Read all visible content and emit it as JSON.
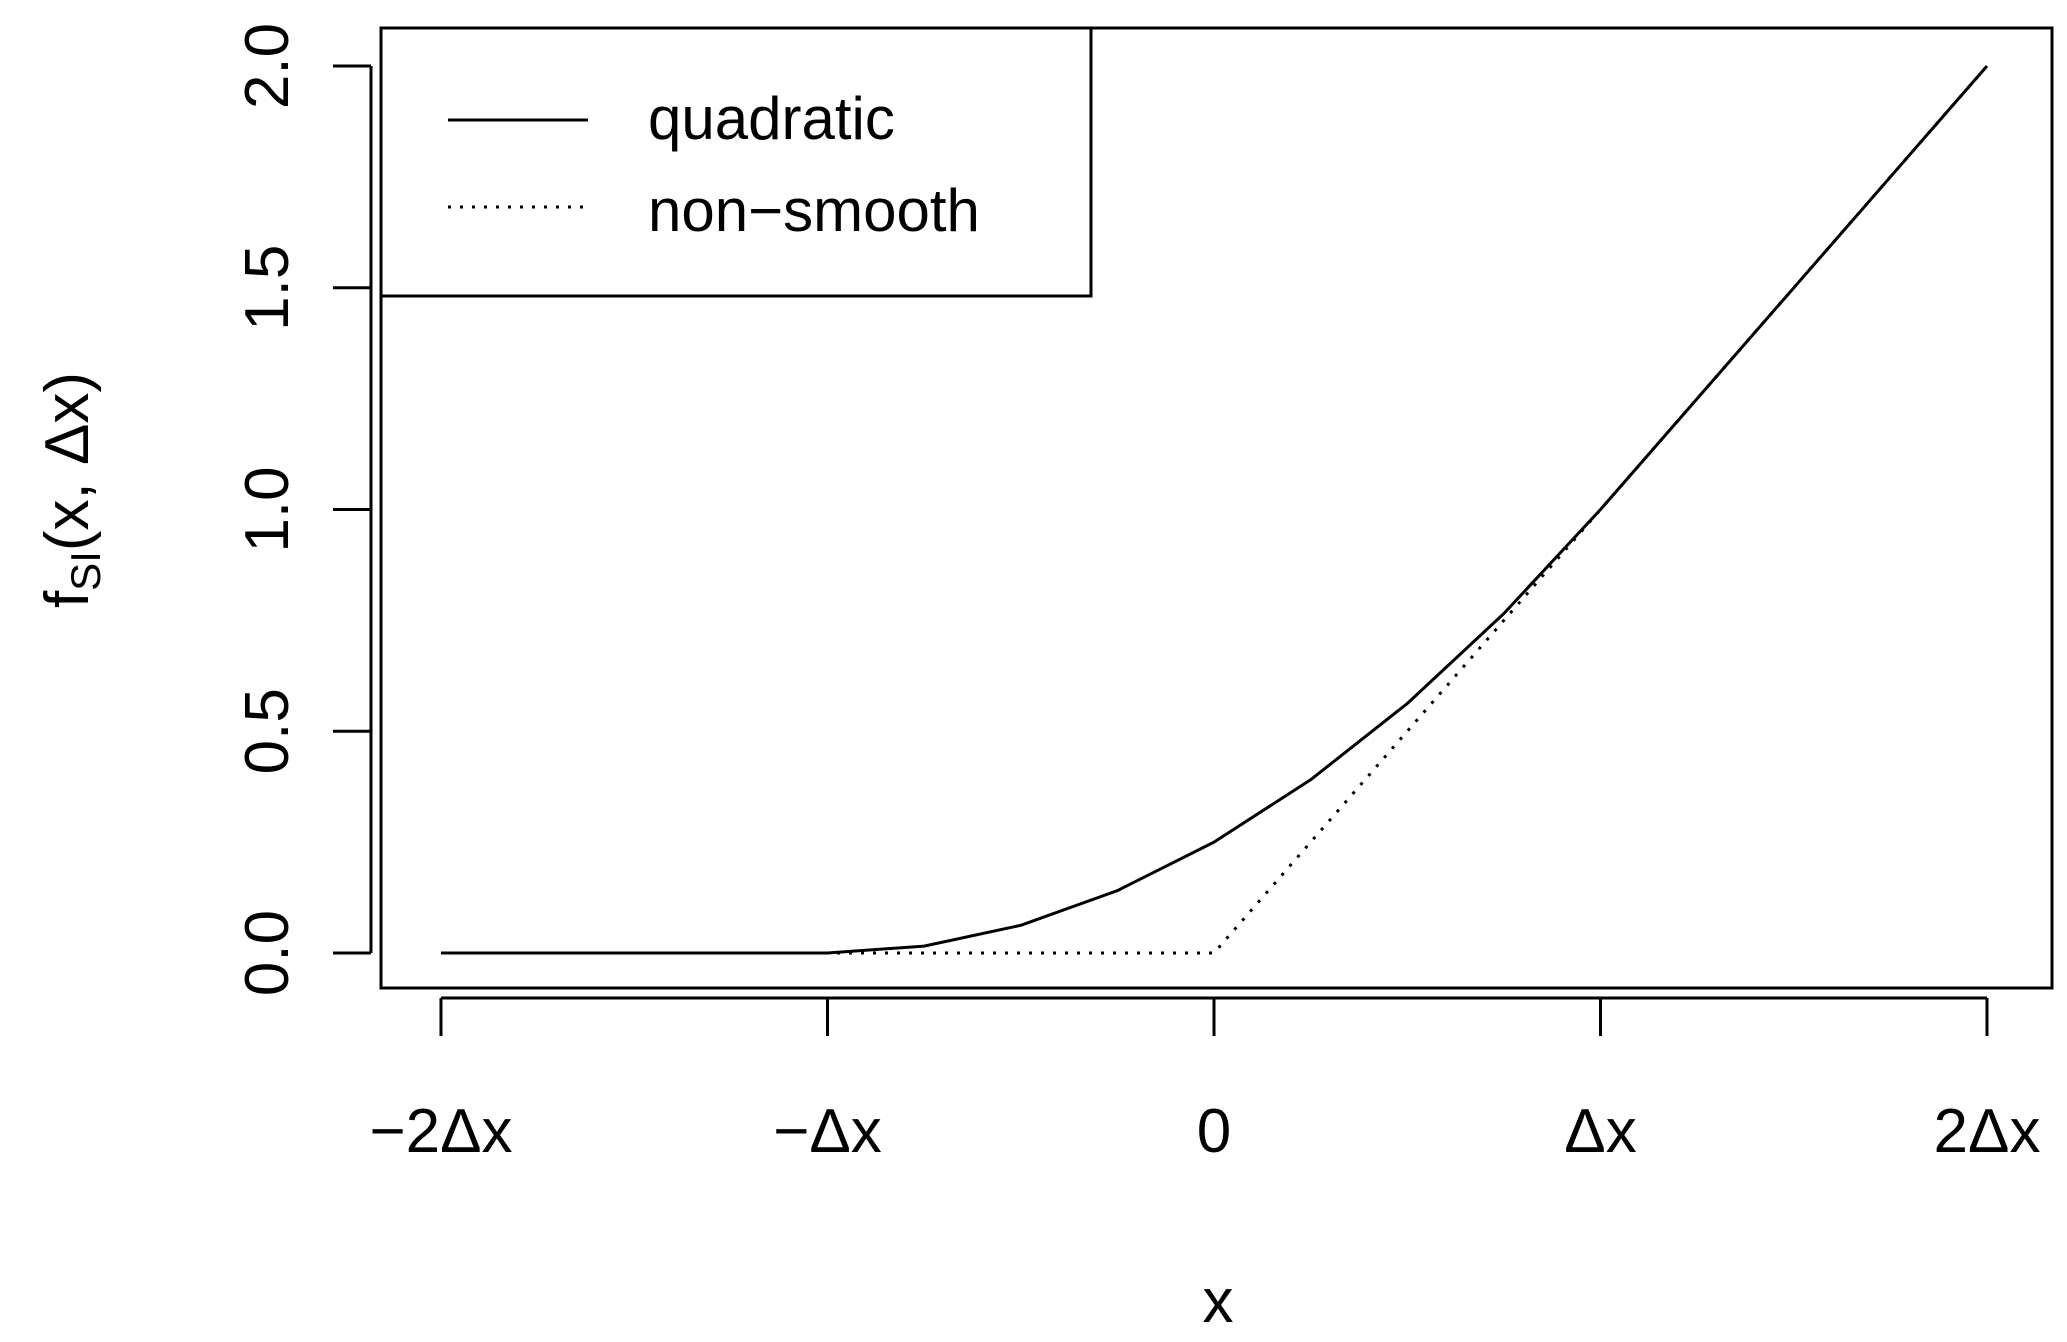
{
  "chart_data": {
    "type": "line",
    "title": "",
    "xlabel": "x",
    "ylabel": {
      "main": "f",
      "subscript": "SI",
      "args": "(x, Δx)"
    },
    "x_unit": "Δx",
    "xlim": [
      -2,
      2
    ],
    "ylim": [
      0,
      2
    ],
    "x_ticks": [
      -2,
      -1,
      0,
      1,
      2
    ],
    "x_tick_labels": [
      "−2Δx",
      "−Δx",
      "0",
      "Δx",
      "2Δx"
    ],
    "y_ticks": [
      0,
      0.5,
      1,
      1.5,
      2
    ],
    "y_tick_labels": [
      "0.0",
      "0.5",
      "1.0",
      "1.5",
      "2.0"
    ],
    "legend_position": "top-left",
    "series": [
      {
        "name": "quadratic",
        "line_style": "solid",
        "color": "#000000",
        "x": [
          -2,
          -1.5,
          -1,
          -0.75,
          -0.5,
          -0.25,
          0,
          0.25,
          0.5,
          0.75,
          1,
          1.5,
          2
        ],
        "y": [
          0,
          0,
          0,
          0.0156,
          0.0625,
          0.1406,
          0.25,
          0.3906,
          0.5625,
          0.7656,
          1,
          1.5,
          2
        ]
      },
      {
        "name": "non−smooth",
        "line_style": "dotted",
        "color": "#000000",
        "x": [
          -2,
          0,
          1,
          2
        ],
        "y": [
          0,
          0,
          1,
          2
        ]
      }
    ]
  }
}
